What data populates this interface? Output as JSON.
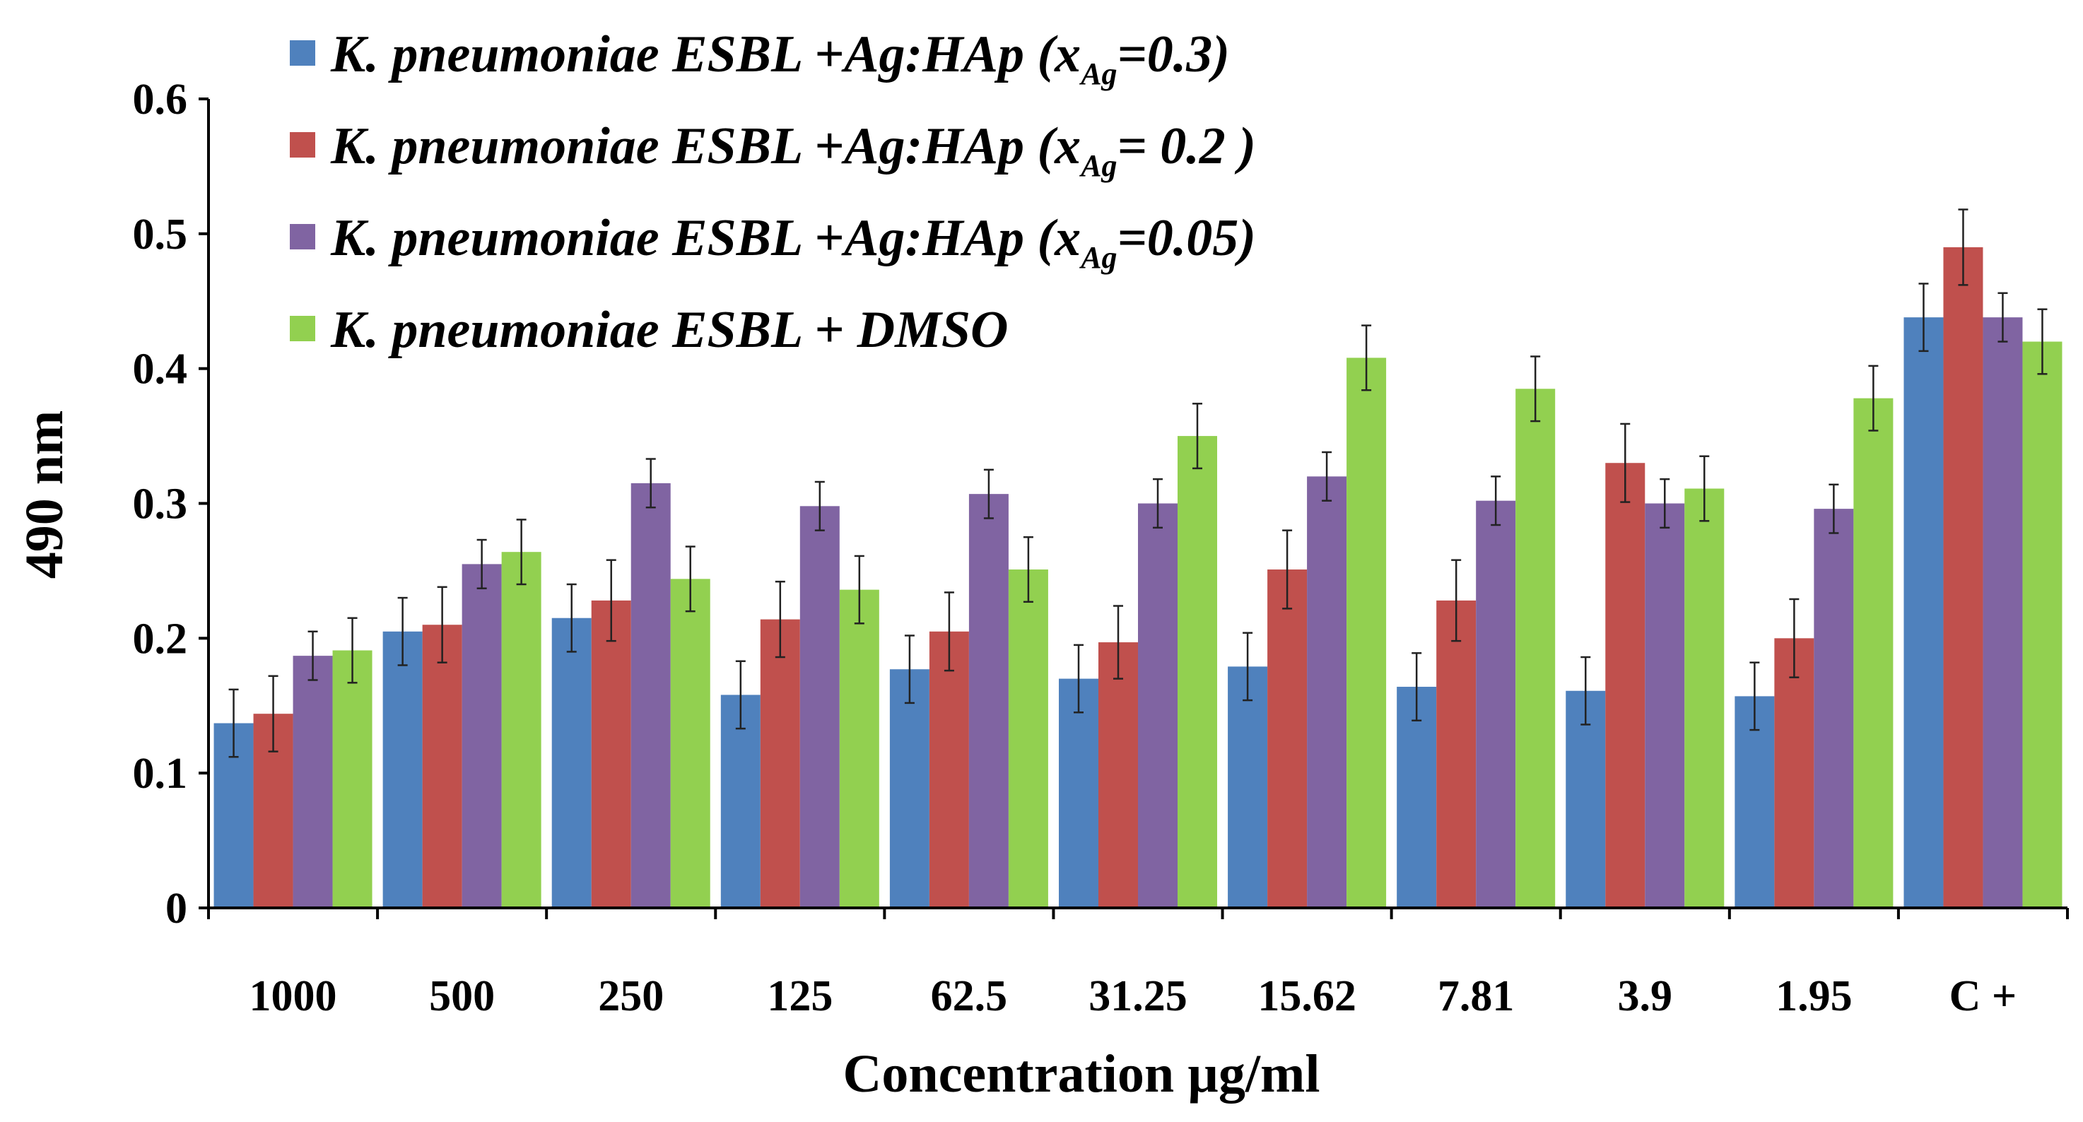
{
  "chart_data": {
    "type": "bar",
    "title": "",
    "xlabel": "Concentration µg/ml",
    "ylabel": "490 nm",
    "ylim": [
      0,
      0.6
    ],
    "yticks": [
      "0",
      "0.1",
      "0.2",
      "0.3",
      "0.4",
      "0.5",
      "0.6"
    ],
    "grid": false,
    "legend_position": "top-left",
    "categories": [
      "1000",
      "500",
      "250",
      "125",
      "62.5",
      "31.25",
      "15.62",
      "7.81",
      "3.9",
      "1.95",
      "C +"
    ],
    "series": [
      {
        "name": "K. pneumoniae ESBL +Ag:HAp (xAg=0.3)",
        "legend_main": "K. pneumoniae ESBL +Ag:HAp (x",
        "legend_sub": "Ag",
        "legend_tail": "=0.3)",
        "color": "#4f81bd",
        "values": [
          0.137,
          0.205,
          0.215,
          0.158,
          0.177,
          0.17,
          0.179,
          0.164,
          0.161,
          0.157,
          0.438
        ],
        "errors": [
          0.025,
          0.025,
          0.025,
          0.025,
          0.025,
          0.025,
          0.025,
          0.025,
          0.025,
          0.025,
          0.025
        ]
      },
      {
        "name": "K. pneumoniae ESBL +Ag:HAp (xAg= 0.2 )",
        "legend_main": "K. pneumoniae ESBL +Ag:HAp (x",
        "legend_sub": "Ag",
        "legend_tail": "= 0.2 )",
        "color": "#c0504d",
        "values": [
          0.144,
          0.21,
          0.228,
          0.214,
          0.205,
          0.197,
          0.251,
          0.228,
          0.33,
          0.2,
          0.49
        ],
        "errors": [
          0.028,
          0.028,
          0.03,
          0.028,
          0.029,
          0.027,
          0.029,
          0.03,
          0.029,
          0.029,
          0.028
        ]
      },
      {
        "name": "K. pneumoniae ESBL +Ag:HAp (xAg=0.05)",
        "legend_main": "K. pneumoniae ESBL +Ag:HAp (x",
        "legend_sub": "Ag",
        "legend_tail": "=0.05)",
        "color": "#8064a2",
        "values": [
          0.187,
          0.255,
          0.315,
          0.298,
          0.307,
          0.3,
          0.32,
          0.302,
          0.3,
          0.296,
          0.438
        ],
        "errors": [
          0.018,
          0.018,
          0.018,
          0.018,
          0.018,
          0.018,
          0.018,
          0.018,
          0.018,
          0.018,
          0.018
        ]
      },
      {
        "name": "K. pneumoniae ESBL + DMSO",
        "legend_main": "K. pneumoniae ESBL + DMSO",
        "legend_sub": "",
        "legend_tail": "",
        "color": "#92d050",
        "values": [
          0.191,
          0.264,
          0.244,
          0.236,
          0.251,
          0.35,
          0.408,
          0.385,
          0.311,
          0.378,
          0.42
        ],
        "errors": [
          0.024,
          0.024,
          0.024,
          0.025,
          0.024,
          0.024,
          0.024,
          0.024,
          0.024,
          0.024,
          0.024
        ]
      }
    ]
  }
}
